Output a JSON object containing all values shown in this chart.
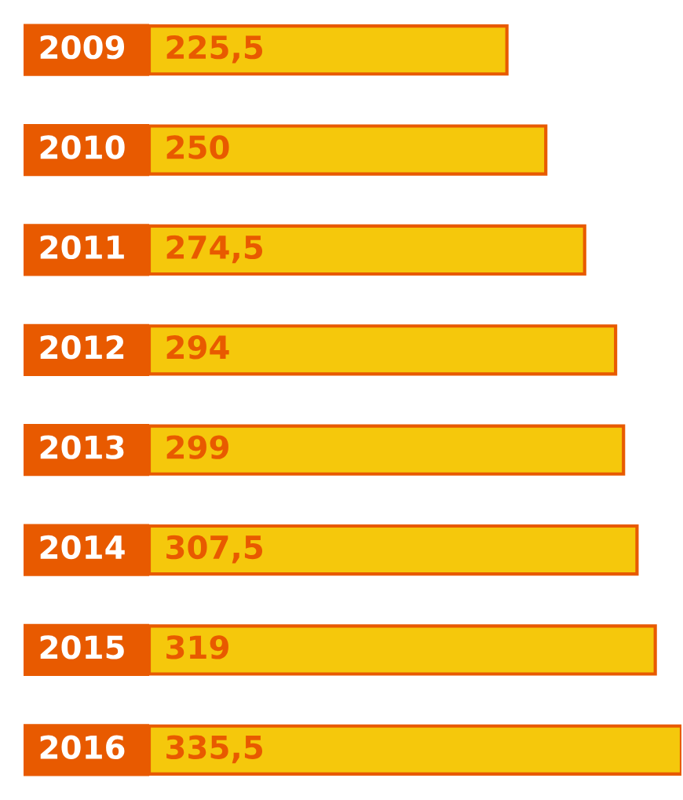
{
  "chart_data": {
    "type": "bar",
    "orientation": "horizontal",
    "categories": [
      "2009",
      "2010",
      "2011",
      "2012",
      "2013",
      "2014",
      "2015",
      "2016"
    ],
    "values": [
      225.5,
      250,
      274.5,
      294,
      299,
      307.5,
      319,
      335.5
    ],
    "value_labels": [
      "225,5",
      "250",
      "274,5",
      "294",
      "299",
      "307,5",
      "319",
      "335,5"
    ],
    "color": "#f5c80c"
  }
}
